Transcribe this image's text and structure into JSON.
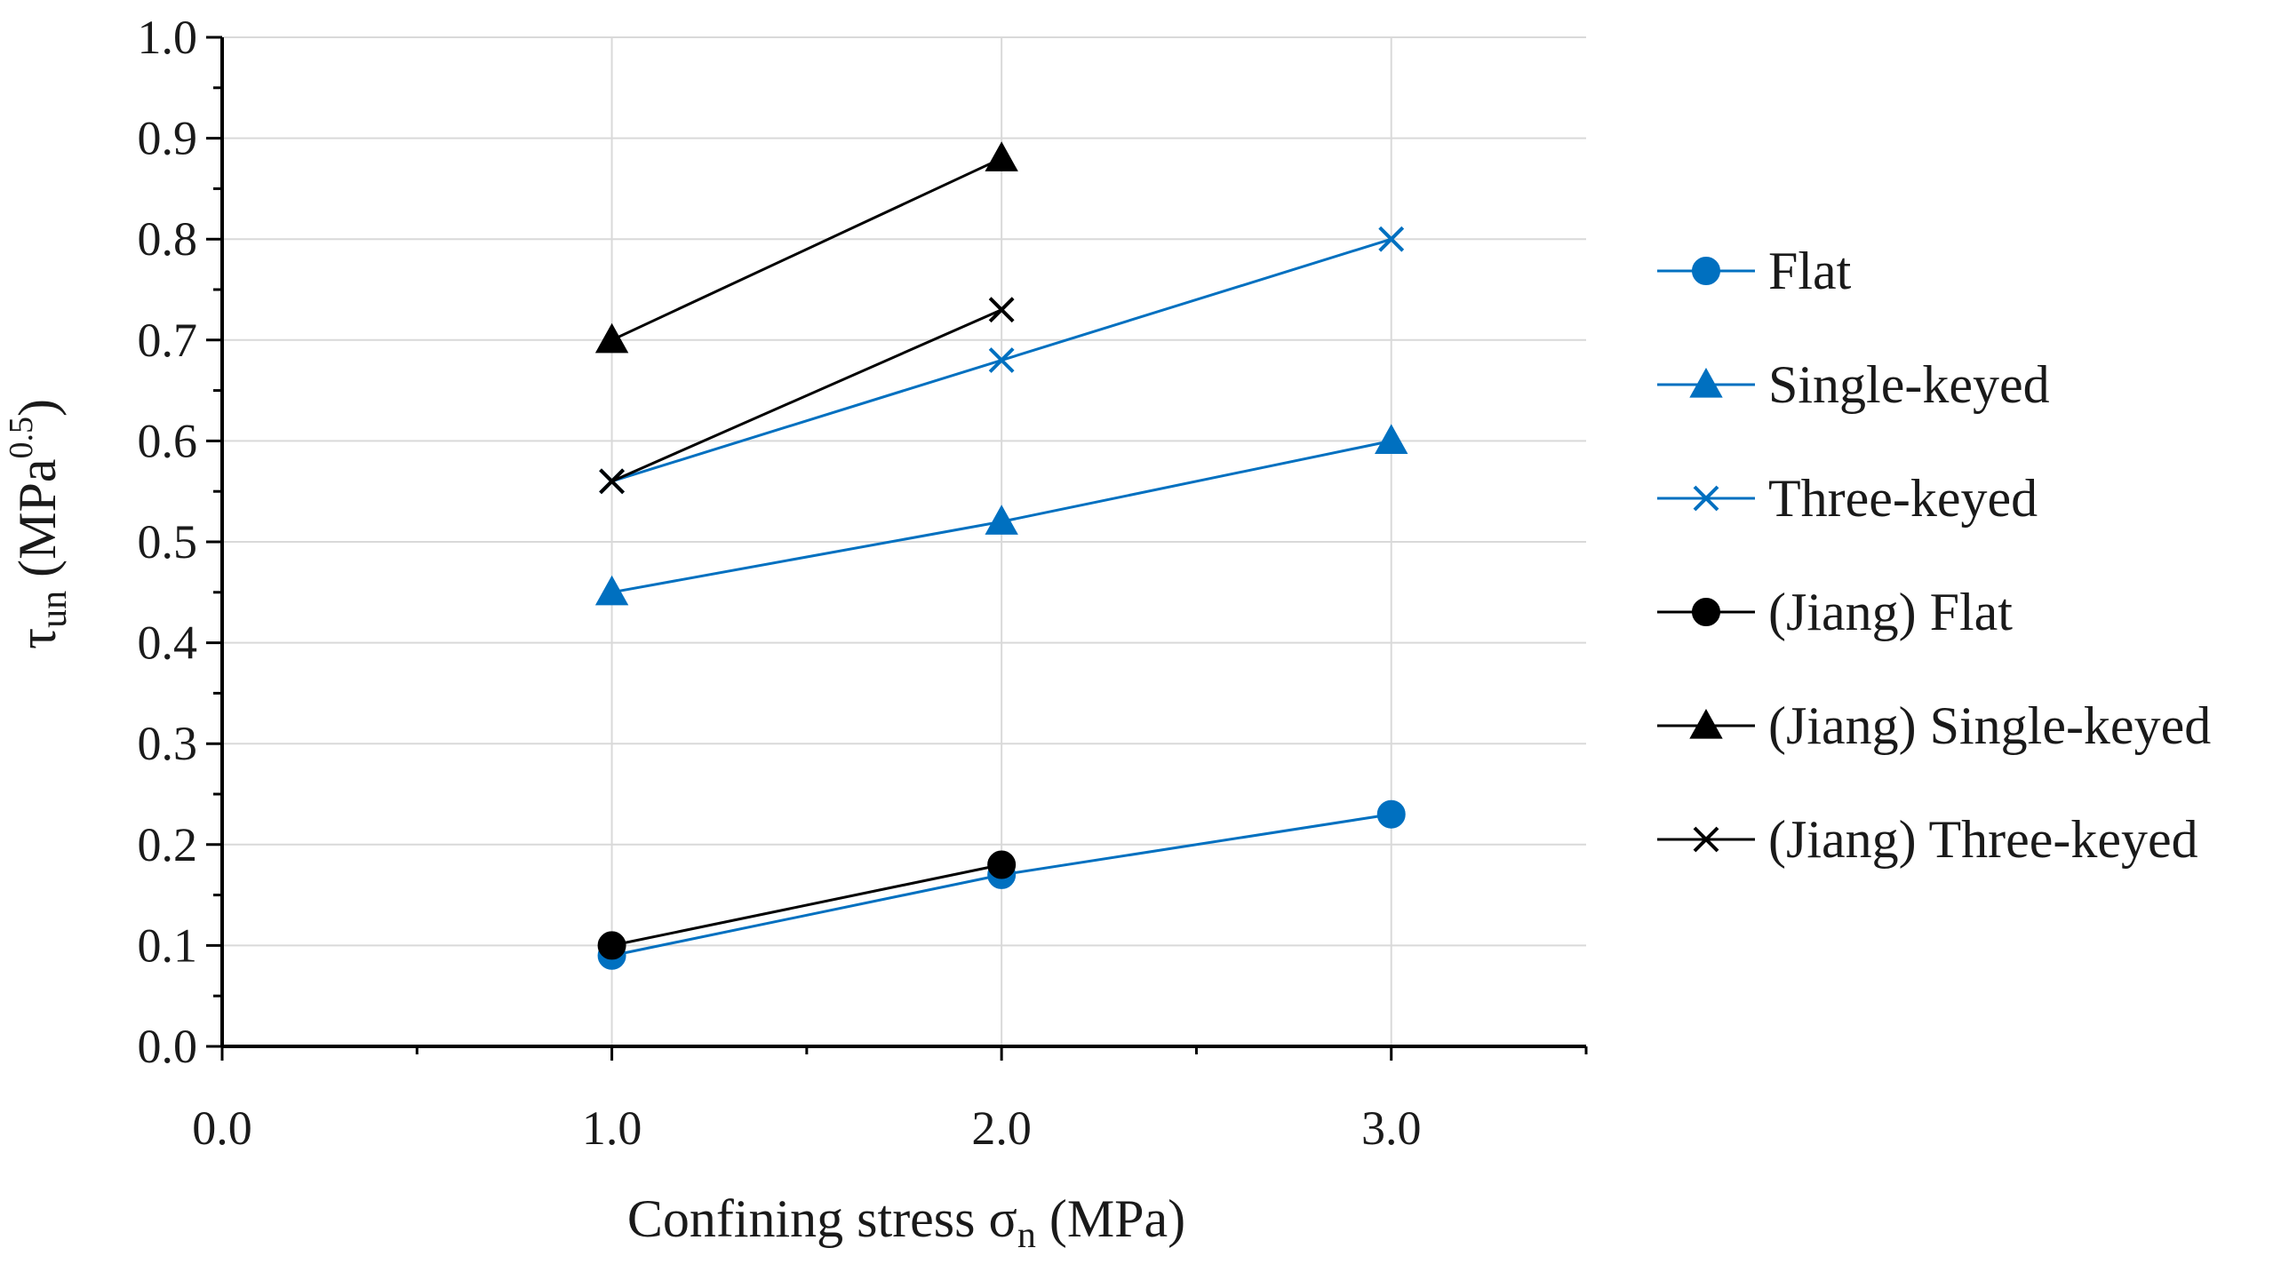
{
  "chart_data": {
    "type": "line",
    "title": "",
    "xlabel": {
      "main": "Confining stress σ",
      "sub": "n",
      "unit": " (MPa)"
    },
    "ylabel": {
      "main": "τ",
      "sub": "un",
      "unit_pre": " (MPa",
      "sup": "0.5",
      "unit_post": ")"
    },
    "xlim": [
      0,
      3.5
    ],
    "ylim": [
      0,
      1.0
    ],
    "xticks": [
      0,
      1,
      2,
      3
    ],
    "xtick_labels": [
      "0.0",
      "1.0",
      "2.0",
      "3.0"
    ],
    "yticks": [
      0,
      0.1,
      0.2,
      0.3,
      0.4,
      0.5,
      0.6,
      0.7,
      0.8,
      0.9,
      1.0
    ],
    "ytick_labels": [
      "0.0",
      "0.1",
      "0.2",
      "0.3",
      "0.4",
      "0.5",
      "0.6",
      "0.7",
      "0.8",
      "0.9",
      "1.0"
    ],
    "grid": true,
    "legend_position": "right",
    "series": [
      {
        "name": "Flat",
        "color": "#0070C0",
        "marker": "circle",
        "x": [
          1,
          2,
          3
        ],
        "y": [
          0.09,
          0.17,
          0.23
        ]
      },
      {
        "name": "Single-keyed",
        "color": "#0070C0",
        "marker": "triangle",
        "x": [
          1,
          2,
          3
        ],
        "y": [
          0.45,
          0.52,
          0.6
        ]
      },
      {
        "name": "Three-keyed",
        "color": "#0070C0",
        "marker": "x",
        "x": [
          1,
          2,
          3
        ],
        "y": [
          0.56,
          0.68,
          0.8
        ]
      },
      {
        "name": "(Jiang) Flat",
        "color": "#000000",
        "marker": "circle",
        "x": [
          1,
          2
        ],
        "y": [
          0.1,
          0.18
        ]
      },
      {
        "name": "(Jiang) Single-keyed",
        "color": "#000000",
        "marker": "triangle",
        "x": [
          1,
          2
        ],
        "y": [
          0.7,
          0.88
        ]
      },
      {
        "name": "(Jiang) Three-keyed",
        "color": "#000000",
        "marker": "x",
        "x": [
          1,
          2
        ],
        "y": [
          0.56,
          0.73
        ]
      }
    ]
  }
}
